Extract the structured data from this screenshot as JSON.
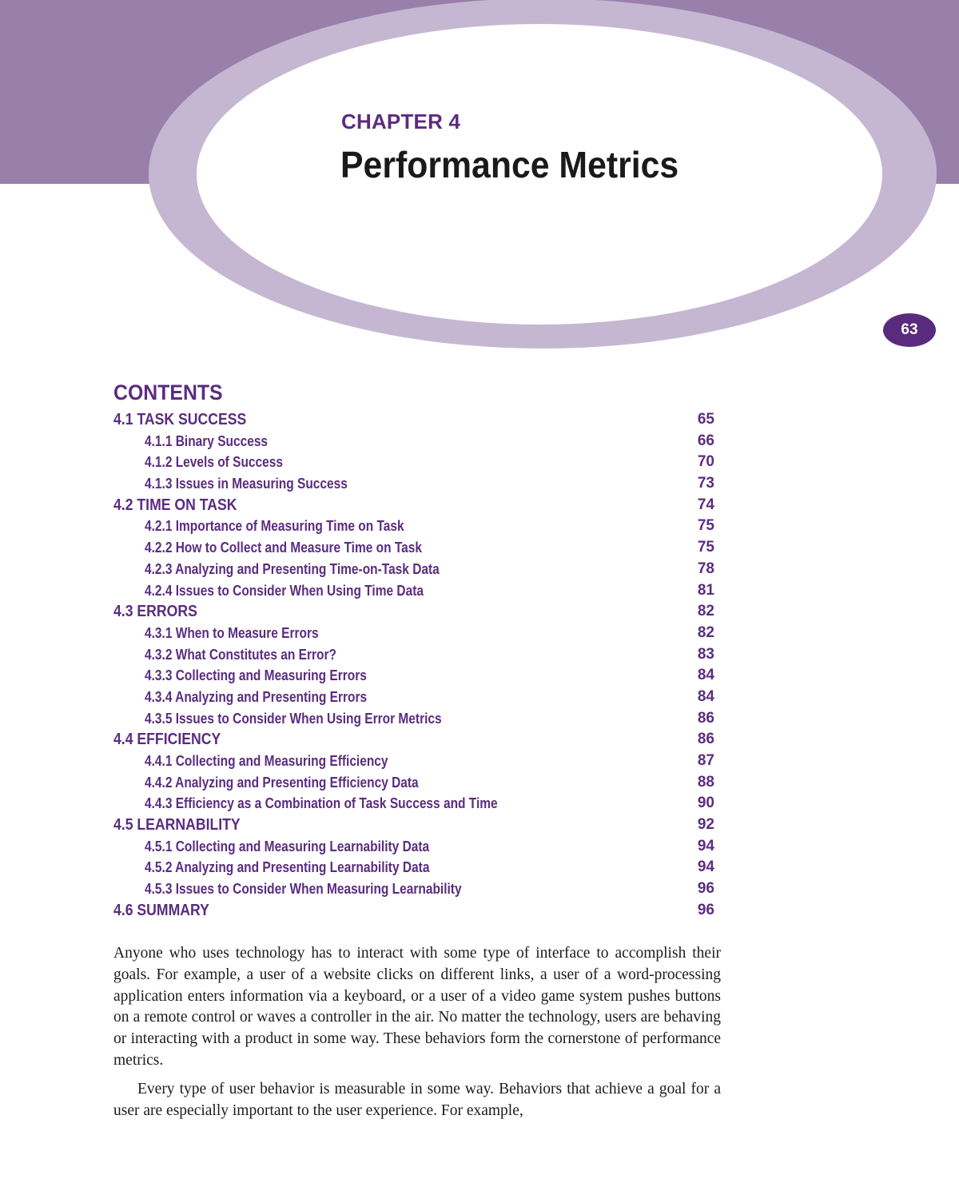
{
  "header": {
    "chapter_label": "CHAPTER 4",
    "chapter_title": "Performance Metrics",
    "page_number": "63"
  },
  "colors": {
    "band": "#9980AB",
    "ring": "#C5B7D1",
    "accent_text": "#5B2C80",
    "page_badge": "#5A2A7E"
  },
  "contents": {
    "heading": "CONTENTS",
    "entries": [
      {
        "level": 1,
        "label": "4.1 TASK SUCCESS",
        "page": "65"
      },
      {
        "level": 2,
        "label": "4.1.1 Binary Success",
        "page": "66"
      },
      {
        "level": 2,
        "label": "4.1.2 Levels of Success",
        "page": "70"
      },
      {
        "level": 2,
        "label": "4.1.3 Issues in Measuring Success",
        "page": "73"
      },
      {
        "level": 1,
        "label": "4.2 TIME ON TASK",
        "page": "74"
      },
      {
        "level": 2,
        "label": "4.2.1 Importance of Measuring Time on Task",
        "page": "75"
      },
      {
        "level": 2,
        "label": "4.2.2 How to Collect and Measure Time on Task",
        "page": "75"
      },
      {
        "level": 2,
        "label": "4.2.3 Analyzing and Presenting Time-on-Task Data",
        "page": "78"
      },
      {
        "level": 2,
        "label": "4.2.4 Issues to Consider When Using Time Data",
        "page": "81"
      },
      {
        "level": 1,
        "label": "4.3 ERRORS",
        "page": "82"
      },
      {
        "level": 2,
        "label": "4.3.1 When to Measure Errors",
        "page": "82"
      },
      {
        "level": 2,
        "label": "4.3.2 What Constitutes an Error?",
        "page": "83"
      },
      {
        "level": 2,
        "label": "4.3.3 Collecting and Measuring Errors",
        "page": "84"
      },
      {
        "level": 2,
        "label": "4.3.4 Analyzing and Presenting Errors",
        "page": "84"
      },
      {
        "level": 2,
        "label": "4.3.5 Issues to Consider When Using Error Metrics",
        "page": "86"
      },
      {
        "level": 1,
        "label": "4.4 EFFICIENCY",
        "page": "86"
      },
      {
        "level": 2,
        "label": "4.4.1 Collecting and Measuring Efficiency",
        "page": "87"
      },
      {
        "level": 2,
        "label": "4.4.2 Analyzing and Presenting Efficiency Data",
        "page": "88"
      },
      {
        "level": 2,
        "label": "4.4.3 Efficiency as a Combination of Task Success and Time",
        "page": "90"
      },
      {
        "level": 1,
        "label": "4.5 LEARNABILITY",
        "page": "92"
      },
      {
        "level": 2,
        "label": "4.5.1 Collecting and Measuring Learnability Data",
        "page": "94"
      },
      {
        "level": 2,
        "label": "4.5.2 Analyzing and Presenting Learnability Data",
        "page": "94"
      },
      {
        "level": 2,
        "label": "4.5.3 Issues to Consider When Measuring Learnability",
        "page": "96"
      },
      {
        "level": 1,
        "label": "4.6 SUMMARY",
        "page": "96"
      }
    ]
  },
  "body": {
    "paragraphs": [
      "Anyone who uses technology has to interact with some type of interface to accom­plish their goals. For example, a user of a website clicks on different links, a user of a word-processing application enters information via a keyboard, or a user of a video game system pushes buttons on a remote control or waves a controller in the air. No matter the technology, users are behaving or interacting with a prod­uct in some way. These behaviors form the cornerstone of performance metrics.",
      "Every type of user behavior is measurable in some way. Behaviors that achieve a goal for a user are especially important to the user experience. For example,"
    ]
  }
}
